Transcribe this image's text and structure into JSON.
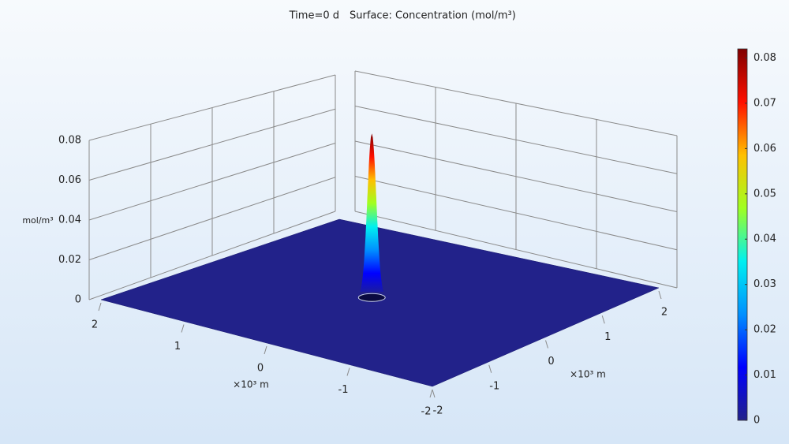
{
  "chart_data": {
    "type": "surface3d",
    "title": "Time=0 d",
    "subtitle": "Surface: Concentration (mol/m³)",
    "xlabel": "×10³ m",
    "ylabel": "×10³ m",
    "zlabel": "mol/m³",
    "xlim": [
      -2,
      2
    ],
    "ylim": [
      -2,
      2
    ],
    "zlim": [
      0,
      0.08
    ],
    "xticks": [
      -2,
      -1,
      0,
      1,
      2
    ],
    "yticks": [
      -2,
      -1,
      0,
      1,
      2
    ],
    "zticks": [
      0,
      0.02,
      0.04,
      0.06,
      0.08
    ],
    "peak": {
      "x": 0,
      "y": 0,
      "value": 0.082
    },
    "colorbar": {
      "lim": [
        0,
        0.082
      ],
      "ticks": [
        0,
        0.01,
        0.02,
        0.03,
        0.04,
        0.05,
        0.06,
        0.07,
        0.08
      ]
    },
    "colormap": [
      "#22228a",
      "#0000ff",
      "#0090ff",
      "#00f0f0",
      "#a0ff20",
      "#ffc000",
      "#ff1000",
      "#800000"
    ],
    "grid": true
  }
}
